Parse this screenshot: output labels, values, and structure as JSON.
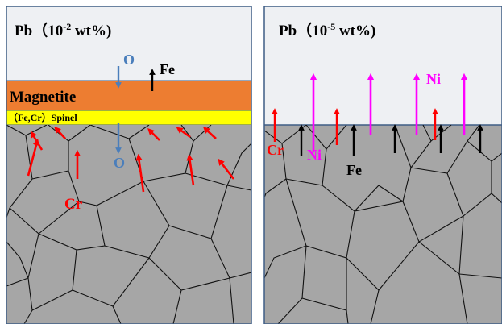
{
  "colors": {
    "liquid_pb": "#eef0f3",
    "grain": "#a6a6a6",
    "grain_boundary": "#111111",
    "panel_border": "#3f5d85",
    "magnetite": "#ed7d31",
    "spinel": "#ffff00",
    "oxygen_arrow": "#4a7ebb",
    "fe_arrow": "#000000",
    "cr_arrow": "#ff0000",
    "ni_arrow": "#ff00ff"
  },
  "left_panel": {
    "title_element": "Pb",
    "title_open": "（10",
    "title_exp": "-2",
    "title_close": " wt%)",
    "magnetite_label": "Magnetite",
    "spinel_label": "（Fe,Cr）Spinel",
    "o_top_label": "O",
    "fe_label": "Fe",
    "o_bottom_label": "O",
    "cr_label": "Cr"
  },
  "right_panel": {
    "title_element": "Pb",
    "title_open": "（10",
    "title_exp": "-5",
    "title_close": " wt%)",
    "ni_top_label": "Ni",
    "cr_label": "Cr",
    "ni_bottom_label": "Ni",
    "fe_label": "Fe"
  }
}
